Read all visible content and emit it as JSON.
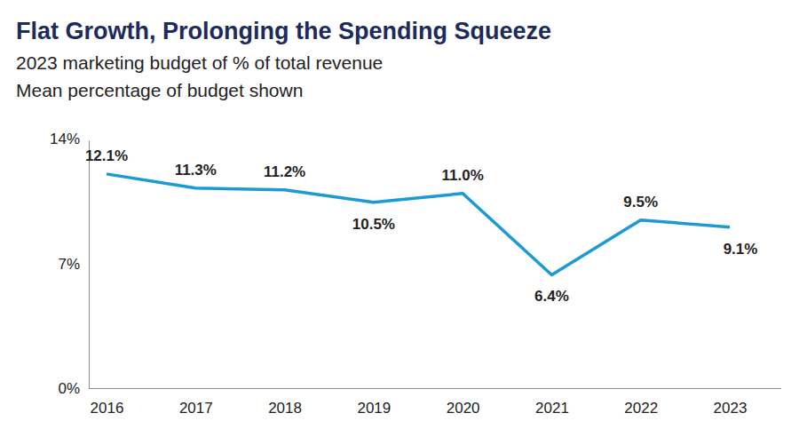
{
  "chart_data": {
    "type": "line",
    "title": "Flat Growth, Prolonging the Spending Squeeze",
    "subtitle": [
      "2023 marketing budget of % of total revenue",
      "Mean percentage of budget shown"
    ],
    "categories": [
      "2016",
      "2017",
      "2018",
      "2019",
      "2020",
      "2021",
      "2022",
      "2023"
    ],
    "values": [
      12.1,
      11.3,
      11.2,
      10.5,
      11.0,
      6.4,
      9.5,
      9.1
    ],
    "value_labels": [
      "12.1%",
      "11.3%",
      "11.2%",
      "10.5%",
      "11.0%",
      "6.4%",
      "9.5%",
      "9.1%"
    ],
    "color": "#1b9ad6",
    "data_labels": true,
    "grid": false,
    "ylim": [
      0,
      14
    ],
    "yticks": [
      {
        "value": 0,
        "label": "0%"
      },
      {
        "value": 7,
        "label": "7%"
      },
      {
        "value": 14,
        "label": "14%"
      }
    ]
  }
}
